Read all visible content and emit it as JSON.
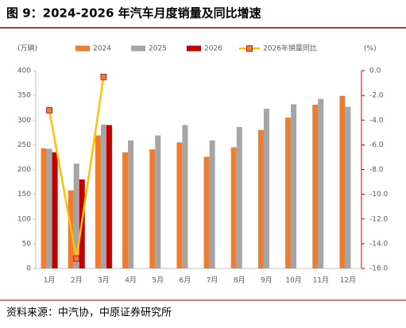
{
  "chart_data": {
    "type": "bar-line",
    "title": "图 9：2024-2026 年汽车月度销量及同比增速",
    "y_label": "(万辆)",
    "y2_label": "(%)",
    "source": "资料来源：中汽协，中原证券研究所",
    "categories": [
      "1月",
      "2月",
      "3月",
      "4月",
      "5月",
      "6月",
      "7月",
      "8月",
      "9月",
      "10月",
      "11月",
      "12月"
    ],
    "series": [
      {
        "name": "2024",
        "type": "bar",
        "color": "#ed7d31",
        "values": [
          243,
          158,
          269,
          235,
          241,
          255,
          226,
          245,
          280,
          305,
          331,
          349
        ]
      },
      {
        "name": "2025",
        "type": "bar",
        "color": "#a5a5a5",
        "values": [
          242,
          212,
          291,
          259,
          269,
          290,
          259,
          286,
          323,
          332,
          343,
          327
        ]
      },
      {
        "name": "2026",
        "type": "bar",
        "color": "#c00000",
        "values": [
          235,
          180,
          290,
          null,
          null,
          null,
          null,
          null,
          null,
          null,
          null,
          null
        ]
      },
      {
        "name": "2026年销量同比",
        "type": "line",
        "axis": "y2",
        "color": "#ffc000",
        "values": [
          -3.2,
          -15.2,
          -0.5,
          null,
          null,
          null,
          null,
          null,
          null,
          null,
          null,
          null
        ]
      }
    ],
    "ylim": [
      0,
      400
    ],
    "yticks": [
      0,
      50,
      100,
      150,
      200,
      250,
      300,
      350,
      400
    ],
    "y2lim": [
      -16,
      0
    ],
    "y2ticks": [
      {
        "value": 0,
        "label": "0.0"
      },
      {
        "value": -2,
        "label": "-2.0"
      },
      {
        "value": -4,
        "label": "-4.0"
      },
      {
        "value": -6,
        "label": "-6.0"
      },
      {
        "value": -8,
        "label": "-8.0"
      },
      {
        "value": -10,
        "label": "-10.0"
      },
      {
        "value": -12,
        "label": "-12.0"
      },
      {
        "value": -14,
        "label": "-14.0"
      },
      {
        "value": -16,
        "label": "-16.0"
      }
    ]
  }
}
